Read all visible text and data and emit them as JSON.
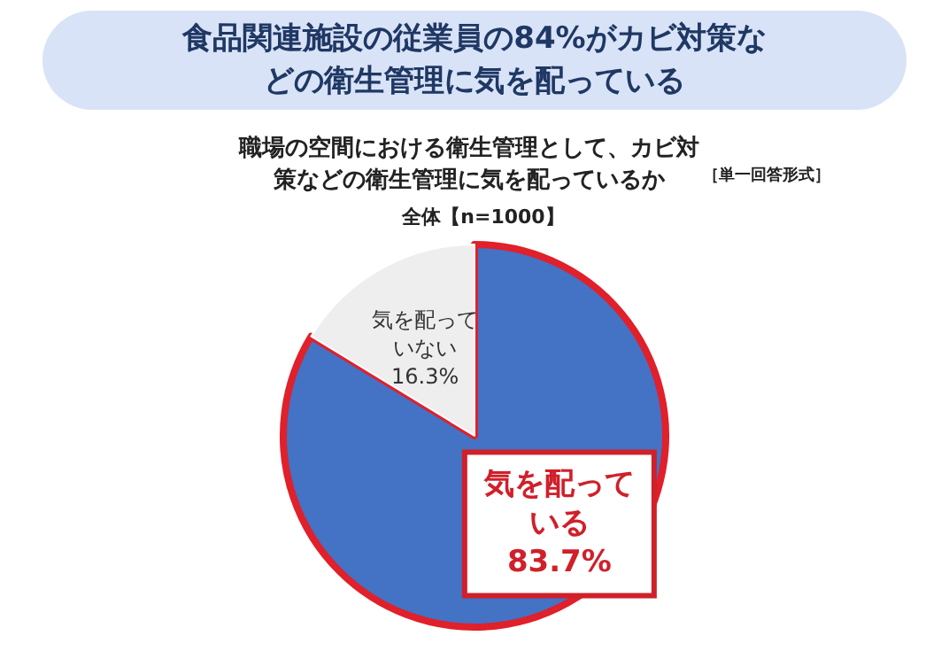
{
  "chart_data": {
    "type": "pie",
    "title": "食品関連施設の従業員の84%がカビ対策などの衛生管理に気を配っている",
    "subtitle": "職場の空間における衛生管理として、カビ対策などの衛生管理に気を配っているか",
    "annotations": [
      "［単一回答形式］",
      "全体【n=1000】"
    ],
    "categories": [
      "気を配っている",
      "気を配っていない"
    ],
    "values": [
      83.7,
      16.3
    ],
    "value_labels": [
      "83.7%",
      "16.3%"
    ],
    "colors": [
      "#4472c4",
      "#eeeeee"
    ],
    "data_labels": true,
    "legend": false
  }
}
